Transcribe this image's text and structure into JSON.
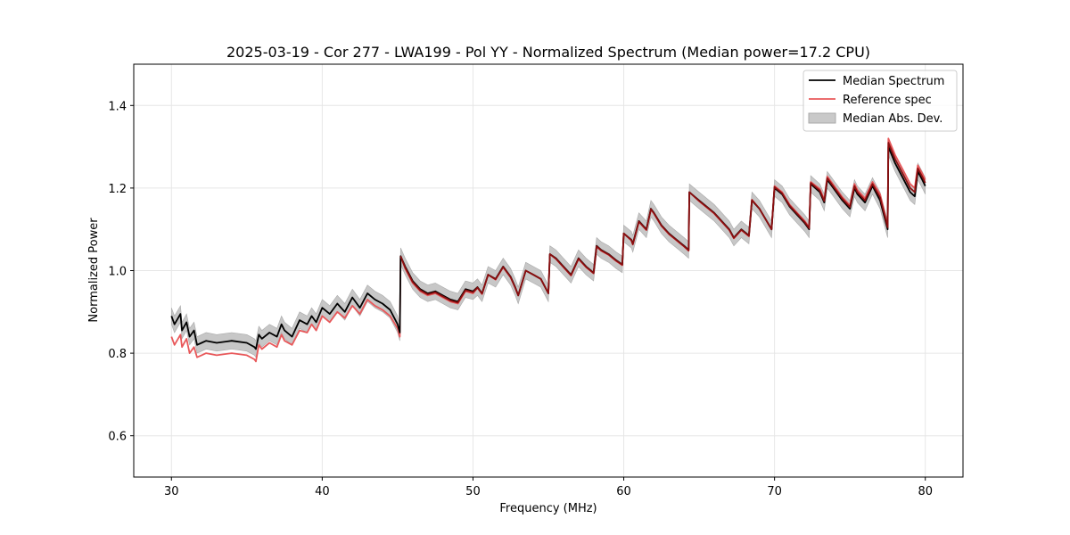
{
  "chart_data": {
    "type": "line",
    "title": "2025-03-19 - Cor 277 - LWA199 - Pol YY - Normalized Spectrum (Median power=17.2 CPU)",
    "xlabel": "Frequency (MHz)",
    "ylabel": "Normalized Power",
    "xlim": [
      27.5,
      82.5
    ],
    "ylim": [
      0.5,
      1.5
    ],
    "xticks": [
      30,
      40,
      50,
      60,
      70,
      80
    ],
    "yticks": [
      0.6,
      0.8,
      1.0,
      1.2,
      1.4
    ],
    "xtick_labels": [
      "30",
      "40",
      "50",
      "60",
      "70",
      "80"
    ],
    "ytick_labels": [
      "0.6",
      "0.8",
      "1.0",
      "1.2",
      "1.4"
    ],
    "grid": true,
    "legend_position": "top-right",
    "legend": [
      "Median Spectrum",
      "Reference spec",
      "Median Abs. Dev."
    ],
    "colors": {
      "median": "#000000",
      "reference": "#e8585a",
      "band": "#bdbdbd",
      "overlap": "#8b0f10"
    },
    "series": [
      {
        "name": "Median Spectrum",
        "x": [
          30.0,
          30.2,
          30.6,
          30.7,
          31.0,
          31.2,
          31.5,
          31.7,
          32.0,
          32.3,
          33.0,
          34.0,
          35.0,
          35.5,
          35.6,
          35.8,
          36.0,
          36.5,
          37.0,
          37.3,
          37.5,
          38.0,
          38.5,
          39.0,
          39.3,
          39.6,
          40.0,
          40.5,
          41.0,
          41.5,
          42.0,
          42.5,
          43.0,
          43.5,
          44.0,
          44.5,
          45.0,
          45.15,
          45.2,
          45.5,
          46.0,
          46.5,
          47.0,
          47.5,
          48.0,
          48.5,
          49.0,
          49.5,
          50.0,
          50.3,
          50.6,
          51.0,
          51.5,
          52.0,
          52.5,
          52.8,
          53.0,
          53.5,
          54.0,
          54.5,
          55.0,
          55.1,
          55.5,
          56.0,
          56.5,
          57.0,
          57.5,
          58.0,
          58.2,
          58.5,
          59.0,
          59.5,
          59.9,
          60.0,
          60.5,
          60.6,
          61.0,
          61.5,
          61.8,
          62.0,
          62.5,
          63.0,
          63.5,
          64.0,
          64.3,
          64.35,
          65.0,
          66.0,
          67.0,
          67.3,
          67.8,
          68.3,
          68.5,
          69.0,
          69.8,
          70.0,
          70.5,
          71.0,
          71.5,
          72.0,
          72.3,
          72.4,
          73.0,
          73.3,
          73.5,
          74.0,
          74.5,
          75.0,
          75.3,
          75.5,
          76.0,
          76.5,
          77.0,
          77.5,
          77.55,
          78.0,
          78.5,
          79.0,
          79.3,
          79.5,
          79.8,
          80.0
        ],
        "values": [
          0.89,
          0.87,
          0.895,
          0.855,
          0.875,
          0.84,
          0.855,
          0.82,
          0.825,
          0.83,
          0.825,
          0.83,
          0.825,
          0.815,
          0.81,
          0.845,
          0.835,
          0.85,
          0.84,
          0.87,
          0.855,
          0.84,
          0.88,
          0.87,
          0.89,
          0.875,
          0.91,
          0.895,
          0.92,
          0.9,
          0.935,
          0.91,
          0.945,
          0.93,
          0.92,
          0.905,
          0.87,
          0.85,
          1.035,
          1.01,
          0.975,
          0.955,
          0.945,
          0.95,
          0.94,
          0.93,
          0.925,
          0.955,
          0.95,
          0.96,
          0.945,
          0.99,
          0.98,
          1.01,
          0.985,
          0.96,
          0.94,
          1.0,
          0.99,
          0.98,
          0.945,
          1.04,
          1.03,
          1.01,
          0.99,
          1.03,
          1.01,
          0.995,
          1.06,
          1.05,
          1.04,
          1.025,
          1.015,
          1.09,
          1.075,
          1.065,
          1.12,
          1.1,
          1.15,
          1.14,
          1.11,
          1.09,
          1.075,
          1.06,
          1.05,
          1.19,
          1.17,
          1.14,
          1.1,
          1.08,
          1.1,
          1.085,
          1.17,
          1.15,
          1.1,
          1.2,
          1.185,
          1.155,
          1.135,
          1.115,
          1.1,
          1.21,
          1.19,
          1.165,
          1.22,
          1.195,
          1.17,
          1.15,
          1.2,
          1.185,
          1.165,
          1.205,
          1.17,
          1.1,
          1.3,
          1.26,
          1.225,
          1.19,
          1.18,
          1.24,
          1.22,
          1.205
        ]
      },
      {
        "name": "Reference spec",
        "x": [
          30.0,
          30.2,
          30.6,
          30.7,
          31.0,
          31.2,
          31.5,
          31.7,
          32.0,
          32.3,
          33.0,
          34.0,
          35.0,
          35.5,
          35.6,
          35.8,
          36.0,
          36.5,
          37.0,
          37.3,
          37.5,
          38.0,
          38.5,
          39.0,
          39.3,
          39.6,
          40.0,
          40.5,
          41.0,
          41.5,
          42.0,
          42.5,
          43.0,
          43.5,
          44.0,
          44.5,
          45.0,
          45.15,
          45.2,
          45.5,
          46.0,
          46.5,
          47.0,
          47.5,
          48.0,
          48.5,
          49.0,
          49.5,
          50.0,
          50.3,
          50.6,
          51.0,
          51.5,
          52.0,
          52.5,
          52.8,
          53.0,
          53.5,
          54.0,
          54.5,
          55.0,
          55.1,
          55.5,
          56.0,
          56.5,
          57.0,
          57.5,
          58.0,
          58.2,
          58.5,
          59.0,
          59.5,
          59.9,
          60.0,
          60.5,
          60.6,
          61.0,
          61.5,
          61.8,
          62.0,
          62.5,
          63.0,
          63.5,
          64.0,
          64.3,
          64.35,
          65.0,
          66.0,
          67.0,
          67.3,
          67.8,
          68.3,
          68.5,
          69.0,
          69.8,
          70.0,
          70.5,
          71.0,
          71.5,
          72.0,
          72.3,
          72.4,
          73.0,
          73.3,
          73.5,
          74.0,
          74.5,
          75.0,
          75.3,
          75.5,
          76.0,
          76.5,
          77.0,
          77.5,
          77.55,
          78.0,
          78.5,
          79.0,
          79.3,
          79.5,
          79.8,
          80.0
        ],
        "values": [
          0.84,
          0.82,
          0.845,
          0.815,
          0.835,
          0.8,
          0.815,
          0.79,
          0.795,
          0.8,
          0.795,
          0.8,
          0.795,
          0.785,
          0.78,
          0.82,
          0.81,
          0.825,
          0.815,
          0.845,
          0.83,
          0.82,
          0.855,
          0.85,
          0.87,
          0.855,
          0.89,
          0.875,
          0.9,
          0.885,
          0.915,
          0.895,
          0.93,
          0.915,
          0.905,
          0.89,
          0.86,
          0.84,
          1.035,
          1.005,
          0.97,
          0.95,
          0.94,
          0.945,
          0.935,
          0.925,
          0.92,
          0.95,
          0.945,
          0.958,
          0.943,
          0.99,
          0.978,
          1.008,
          0.983,
          0.958,
          0.94,
          1.0,
          0.99,
          0.98,
          0.945,
          1.04,
          1.028,
          1.008,
          0.988,
          1.028,
          1.008,
          0.993,
          1.058,
          1.048,
          1.038,
          1.023,
          1.013,
          1.09,
          1.073,
          1.063,
          1.118,
          1.098,
          1.148,
          1.138,
          1.108,
          1.088,
          1.073,
          1.058,
          1.048,
          1.19,
          1.168,
          1.138,
          1.098,
          1.078,
          1.098,
          1.083,
          1.172,
          1.15,
          1.1,
          1.205,
          1.19,
          1.16,
          1.14,
          1.12,
          1.105,
          1.215,
          1.198,
          1.172,
          1.228,
          1.203,
          1.178,
          1.158,
          1.21,
          1.195,
          1.175,
          1.215,
          1.185,
          1.11,
          1.32,
          1.28,
          1.245,
          1.21,
          1.2,
          1.255,
          1.235,
          1.22
        ]
      }
    ],
    "mad_band": {
      "name": "Median Abs. Dev.",
      "lower_offset": -0.02,
      "upper_offset": 0.02
    }
  }
}
